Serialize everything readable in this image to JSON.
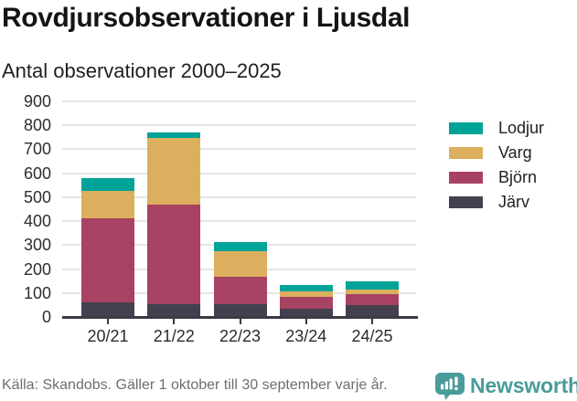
{
  "header": {
    "title": "Rovdjursobservationer i Ljusdal",
    "subtitle": "Antal observationer 2000–2025"
  },
  "footer": {
    "source": "Källa: Skandobs. Gäller 1 oktober till 30 september varje år.",
    "brand": "Newsworthy"
  },
  "colors": {
    "lodjur": "#00a398",
    "varg": "#dcaf5e",
    "bjorn": "#a84263",
    "jarv": "#43414f",
    "axis": "#3a3946",
    "gridline": "#e4e4e4",
    "brand_teal": "#4a9b9a",
    "footer_gray": "#6e6e6e"
  },
  "chart_data": {
    "type": "bar",
    "stacked": true,
    "title": "Rovdjursobservationer i Ljusdal",
    "subtitle": "Antal observationer 2000–2025",
    "categories": [
      "20/21",
      "21/22",
      "22/23",
      "23/24",
      "24/25"
    ],
    "series": [
      {
        "name": "Järv",
        "color": "#43414f",
        "values": [
          62,
          55,
          52,
          36,
          48
        ]
      },
      {
        "name": "Björn",
        "color": "#a84263",
        "values": [
          348,
          413,
          117,
          48,
          46
        ]
      },
      {
        "name": "Varg",
        "color": "#dcaf5e",
        "values": [
          118,
          280,
          106,
          23,
          21
        ]
      },
      {
        "name": "Lodjur",
        "color": "#00a398",
        "values": [
          52,
          24,
          38,
          28,
          33
        ]
      }
    ],
    "totals": [
      580,
      772,
      313,
      135,
      148
    ],
    "xlabel": "",
    "ylabel": "",
    "ylim": [
      0,
      900
    ],
    "ytick_step": 100,
    "grid": true,
    "legend_position": "right",
    "legend_order_top_to_bottom": [
      "Lodjur",
      "Varg",
      "Björn",
      "Järv"
    ]
  }
}
